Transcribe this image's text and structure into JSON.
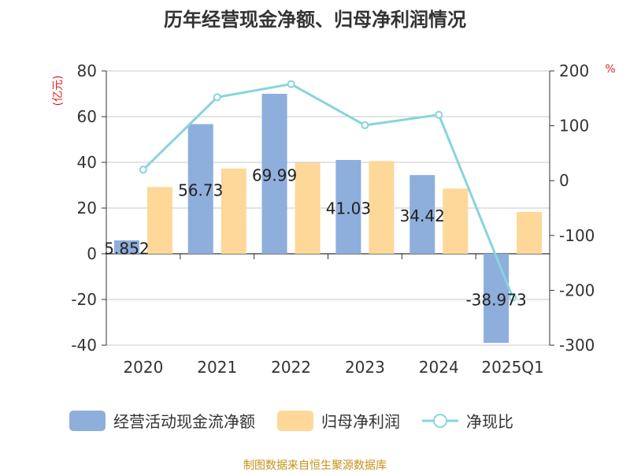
{
  "chart_data": {
    "type": "bar",
    "title": "历年经营现金净额、归母净利润情况",
    "left_unit": "(亿元)",
    "right_unit": "%",
    "categories": [
      "2020",
      "2021",
      "2022",
      "2023",
      "2024",
      "2025Q1"
    ],
    "left_axis": {
      "ylim": [
        -40,
        80
      ],
      "ticks": [
        "-40",
        "-20",
        "0",
        "20",
        "40",
        "60",
        "80"
      ]
    },
    "right_axis": {
      "ylim": [
        -300,
        200
      ],
      "ticks": [
        "-300",
        "-200",
        "-100",
        "0",
        "100",
        "200"
      ]
    },
    "grid": true,
    "legend_position": "bottom",
    "series": [
      {
        "name": "经营活动现金流净额",
        "kind": "bar",
        "axis": "left",
        "color": "#8eaedc",
        "values": [
          5.852,
          56.73,
          69.99,
          41.03,
          34.42,
          -38.973
        ],
        "labels": [
          "5.852",
          "56.73",
          "69.99",
          "41.03",
          "34.42",
          "-38.973"
        ]
      },
      {
        "name": "归母净利润",
        "kind": "bar",
        "axis": "left",
        "color": "#fdd898",
        "values": [
          29.2,
          37.3,
          39.8,
          40.6,
          28.5,
          18.3
        ]
      },
      {
        "name": "净现比",
        "kind": "line",
        "axis": "right",
        "color": "#88d4db",
        "values": [
          20,
          152,
          176,
          101,
          120,
          -213
        ]
      }
    ],
    "source_text": "制图数据来自恒生聚源数据库"
  }
}
